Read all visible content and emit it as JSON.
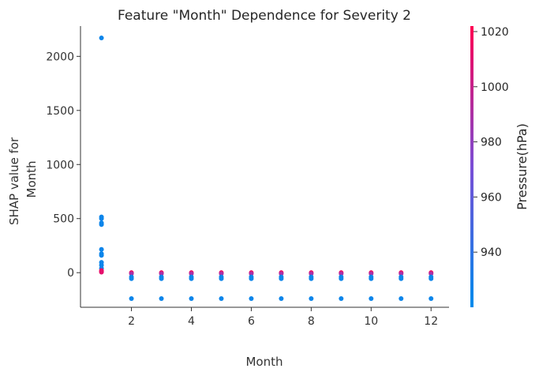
{
  "chart_data": {
    "type": "scatter",
    "title": "Feature \"Month\" Dependence for Severity 2",
    "xlabel": "Month",
    "ylabel_lines": [
      "SHAP value for",
      "Month"
    ],
    "xlim": [
      0.3,
      12.6
    ],
    "ylim": [
      -320,
      2280
    ],
    "xticks": [
      2,
      4,
      6,
      8,
      10,
      12
    ],
    "yticks": [
      0,
      500,
      1000,
      1500,
      2000
    ],
    "colorbar": {
      "label": "Pressure(hPa)",
      "range": [
        920,
        1022
      ],
      "ticks": [
        940,
        960,
        980,
        1000,
        1020
      ],
      "colors": [
        "#008bec",
        "#7a4ed6",
        "#ff0052"
      ]
    },
    "points": [
      {
        "x": 1,
        "y": 2170,
        "c": 925
      },
      {
        "x": 1,
        "y": 515,
        "c": 925
      },
      {
        "x": 1,
        "y": 500,
        "c": 925
      },
      {
        "x": 1,
        "y": 460,
        "c": 925
      },
      {
        "x": 1,
        "y": 445,
        "c": 925
      },
      {
        "x": 1,
        "y": 215,
        "c": 925
      },
      {
        "x": 1,
        "y": 175,
        "c": 925
      },
      {
        "x": 1,
        "y": 160,
        "c": 925
      },
      {
        "x": 1,
        "y": 95,
        "c": 925
      },
      {
        "x": 1,
        "y": 70,
        "c": 925
      },
      {
        "x": 1,
        "y": 40,
        "c": 925
      },
      {
        "x": 1,
        "y": 20,
        "c": 1015
      },
      {
        "x": 1,
        "y": 10,
        "c": 1018
      },
      {
        "x": 1,
        "y": 5,
        "c": 1012
      },
      {
        "x": 2,
        "y": 0,
        "c": 1018
      },
      {
        "x": 2,
        "y": -10,
        "c": 990
      },
      {
        "x": 2,
        "y": -40,
        "c": 925
      },
      {
        "x": 2,
        "y": -55,
        "c": 925
      },
      {
        "x": 2,
        "y": -240,
        "c": 925
      },
      {
        "x": 3,
        "y": 0,
        "c": 1018
      },
      {
        "x": 3,
        "y": -10,
        "c": 990
      },
      {
        "x": 3,
        "y": -40,
        "c": 925
      },
      {
        "x": 3,
        "y": -55,
        "c": 925
      },
      {
        "x": 3,
        "y": -240,
        "c": 925
      },
      {
        "x": 4,
        "y": 0,
        "c": 1018
      },
      {
        "x": 4,
        "y": -10,
        "c": 990
      },
      {
        "x": 4,
        "y": -40,
        "c": 925
      },
      {
        "x": 4,
        "y": -55,
        "c": 925
      },
      {
        "x": 4,
        "y": -240,
        "c": 925
      },
      {
        "x": 5,
        "y": 0,
        "c": 1018
      },
      {
        "x": 5,
        "y": -10,
        "c": 990
      },
      {
        "x": 5,
        "y": -40,
        "c": 925
      },
      {
        "x": 5,
        "y": -55,
        "c": 925
      },
      {
        "x": 5,
        "y": -240,
        "c": 925
      },
      {
        "x": 6,
        "y": 0,
        "c": 1018
      },
      {
        "x": 6,
        "y": -10,
        "c": 990
      },
      {
        "x": 6,
        "y": -40,
        "c": 925
      },
      {
        "x": 6,
        "y": -55,
        "c": 925
      },
      {
        "x": 6,
        "y": -240,
        "c": 925
      },
      {
        "x": 7,
        "y": 0,
        "c": 1018
      },
      {
        "x": 7,
        "y": -10,
        "c": 990
      },
      {
        "x": 7,
        "y": -40,
        "c": 925
      },
      {
        "x": 7,
        "y": -55,
        "c": 925
      },
      {
        "x": 7,
        "y": -240,
        "c": 925
      },
      {
        "x": 8,
        "y": 0,
        "c": 1018
      },
      {
        "x": 8,
        "y": -10,
        "c": 990
      },
      {
        "x": 8,
        "y": -40,
        "c": 925
      },
      {
        "x": 8,
        "y": -55,
        "c": 925
      },
      {
        "x": 8,
        "y": -240,
        "c": 925
      },
      {
        "x": 9,
        "y": 0,
        "c": 1018
      },
      {
        "x": 9,
        "y": -10,
        "c": 990
      },
      {
        "x": 9,
        "y": -40,
        "c": 925
      },
      {
        "x": 9,
        "y": -55,
        "c": 925
      },
      {
        "x": 9,
        "y": -240,
        "c": 925
      },
      {
        "x": 10,
        "y": 0,
        "c": 1018
      },
      {
        "x": 10,
        "y": -10,
        "c": 990
      },
      {
        "x": 10,
        "y": -40,
        "c": 925
      },
      {
        "x": 10,
        "y": -55,
        "c": 925
      },
      {
        "x": 10,
        "y": -240,
        "c": 925
      },
      {
        "x": 11,
        "y": 0,
        "c": 1018
      },
      {
        "x": 11,
        "y": -10,
        "c": 990
      },
      {
        "x": 11,
        "y": -40,
        "c": 925
      },
      {
        "x": 11,
        "y": -55,
        "c": 925
      },
      {
        "x": 11,
        "y": -240,
        "c": 925
      },
      {
        "x": 12,
        "y": 0,
        "c": 1018
      },
      {
        "x": 12,
        "y": -10,
        "c": 990
      },
      {
        "x": 12,
        "y": -40,
        "c": 925
      },
      {
        "x": 12,
        "y": -55,
        "c": 925
      },
      {
        "x": 12,
        "y": -240,
        "c": 925
      }
    ]
  }
}
